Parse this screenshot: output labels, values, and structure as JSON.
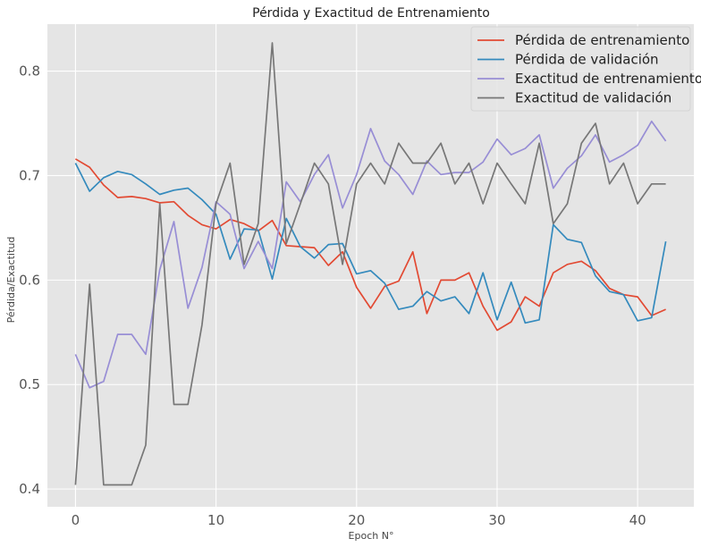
{
  "chart_data": {
    "type": "line",
    "title": "Pérdida y Exactitud de Entrenamiento",
    "xlabel": "Epoch N°",
    "ylabel": "Pérdida/Exactitud",
    "xlim": [
      -2,
      44
    ],
    "ylim": [
      0.383,
      0.845
    ],
    "xticks": [
      0,
      10,
      20,
      30,
      40
    ],
    "yticks": [
      0.4,
      0.5,
      0.6,
      0.7,
      0.8
    ],
    "grid": true,
    "legend_position": "top-right",
    "series": [
      {
        "name": "Pérdida de entrenamiento",
        "color": "#e24a33",
        "values": [
          0.716,
          0.708,
          0.691,
          0.679,
          0.68,
          0.678,
          0.674,
          0.675,
          0.662,
          0.653,
          0.649,
          0.658,
          0.654,
          0.647,
          0.657,
          0.633,
          0.632,
          0.631,
          0.614,
          0.627,
          0.593,
          0.573,
          0.594,
          0.599,
          0.627,
          0.568,
          0.6,
          0.6,
          0.607,
          0.575,
          0.552,
          0.56,
          0.584,
          0.575,
          0.607,
          0.615,
          0.618,
          0.609,
          0.592,
          0.586,
          0.584,
          0.566,
          0.572
        ]
      },
      {
        "name": "Pérdida de validación",
        "color": "#348abd",
        "values": [
          0.712,
          0.685,
          0.698,
          0.704,
          0.701,
          0.692,
          0.682,
          0.686,
          0.688,
          0.677,
          0.663,
          0.62,
          0.649,
          0.648,
          0.601,
          0.659,
          0.632,
          0.621,
          0.634,
          0.635,
          0.606,
          0.609,
          0.597,
          0.572,
          0.575,
          0.589,
          0.58,
          0.584,
          0.568,
          0.607,
          0.562,
          0.598,
          0.559,
          0.562,
          0.653,
          0.639,
          0.636,
          0.604,
          0.589,
          0.586,
          0.561,
          0.564,
          0.637
        ]
      },
      {
        "name": "Exactitud de entrenamiento",
        "color": "#988ed5",
        "values": [
          0.529,
          0.497,
          0.503,
          0.548,
          0.548,
          0.529,
          0.61,
          0.656,
          0.573,
          0.612,
          0.675,
          0.663,
          0.611,
          0.637,
          0.611,
          0.694,
          0.675,
          0.701,
          0.72,
          0.669,
          0.701,
          0.745,
          0.714,
          0.701,
          0.682,
          0.714,
          0.701,
          0.703,
          0.703,
          0.713,
          0.735,
          0.72,
          0.726,
          0.739,
          0.688,
          0.707,
          0.719,
          0.739,
          0.713,
          0.72,
          0.729,
          0.752,
          0.733
        ]
      },
      {
        "name": "Exactitud de validación",
        "color": "#777777",
        "values": [
          0.404,
          0.596,
          0.404,
          0.404,
          0.404,
          0.442,
          0.673,
          0.481,
          0.481,
          0.557,
          0.673,
          0.712,
          0.615,
          0.654,
          0.827,
          0.635,
          0.673,
          0.712,
          0.692,
          0.615,
          0.692,
          0.712,
          0.692,
          0.731,
          0.712,
          0.712,
          0.731,
          0.692,
          0.712,
          0.673,
          0.712,
          0.692,
          0.673,
          0.731,
          0.654,
          0.673,
          0.731,
          0.75,
          0.692,
          0.712,
          0.673,
          0.692,
          0.692
        ]
      }
    ]
  }
}
